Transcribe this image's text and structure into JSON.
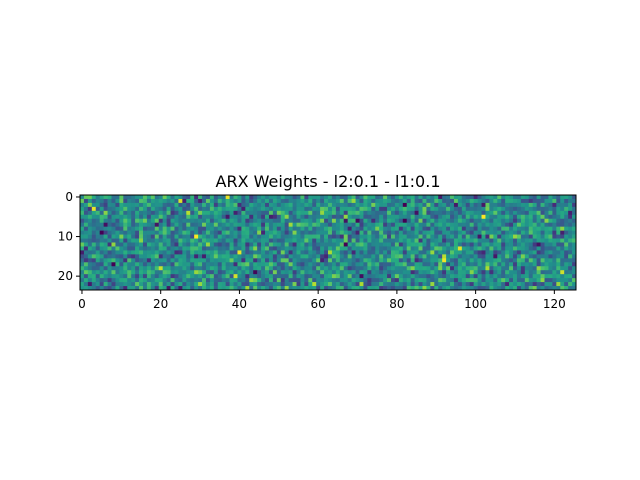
{
  "chart_data": {
    "type": "heatmap",
    "title": "ARX Weights - l2:0.1 - l1:0.1",
    "xlabel": "",
    "ylabel": "",
    "n_cols": 126,
    "n_rows": 24,
    "colormap": "viridis",
    "x_ticks": [
      0,
      20,
      40,
      60,
      80,
      100,
      120
    ],
    "y_ticks": [
      0,
      10,
      20
    ],
    "x_tick_labels": [
      "0",
      "20",
      "40",
      "60",
      "80",
      "100",
      "120"
    ],
    "y_tick_labels": [
      "0",
      "10",
      "20"
    ],
    "grid": false,
    "legend": "none",
    "value_note": "cells show random-looking weights; typical value near middle of colormap with scattered bright (yellow) and dark (purple) cells",
    "highlight_cells": [
      {
        "row": 3,
        "col": 3,
        "level": 0.97
      },
      {
        "row": 1,
        "col": 25,
        "level": 0.95
      },
      {
        "row": 4,
        "col": 27,
        "level": 0.9
      },
      {
        "row": 18,
        "col": 20,
        "level": 0.92
      },
      {
        "row": 14,
        "col": 63,
        "level": 0.88
      },
      {
        "row": 15,
        "col": 92,
        "level": 0.9
      },
      {
        "row": 19,
        "col": 122,
        "level": 0.93
      },
      {
        "row": 7,
        "col": 53,
        "level": 0.86
      },
      {
        "row": 4,
        "col": 85,
        "level": 0.05
      },
      {
        "row": 20,
        "col": 71,
        "level": 0.04
      },
      {
        "row": 10,
        "col": 101,
        "level": 0.06
      },
      {
        "row": 12,
        "col": 116,
        "level": 0.05
      }
    ]
  }
}
